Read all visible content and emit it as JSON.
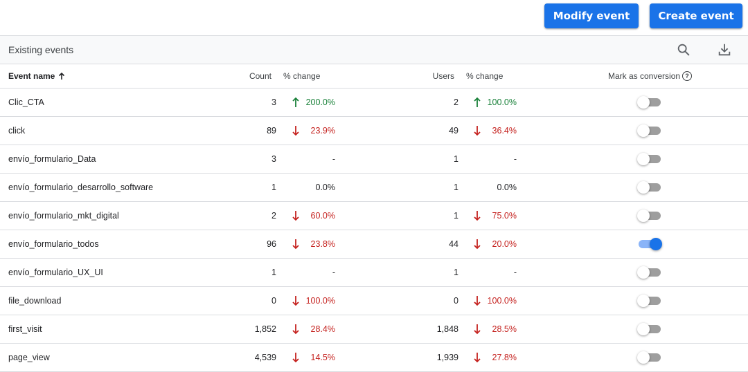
{
  "toolbar": {
    "modify_label": "Modify event",
    "create_label": "Create event"
  },
  "card": {
    "title": "Existing events"
  },
  "table": {
    "headers": {
      "event_name": "Event name",
      "count": "Count",
      "pct_change_count": "% change",
      "users": "Users",
      "pct_change_users": "% change",
      "conversion": "Mark as conversion",
      "help": "?"
    },
    "rows": [
      {
        "name": "Clic_CTA",
        "count": "3",
        "count_change": "200.0%",
        "count_dir": "up",
        "users": "2",
        "users_change": "100.0%",
        "users_dir": "up",
        "conversion": false
      },
      {
        "name": "click",
        "count": "89",
        "count_change": "23.9%",
        "count_dir": "down",
        "users": "49",
        "users_change": "36.4%",
        "users_dir": "down",
        "conversion": false
      },
      {
        "name": "envío_formulario_Data",
        "count": "3",
        "count_change": "-",
        "count_dir": "none",
        "users": "1",
        "users_change": "-",
        "users_dir": "none",
        "conversion": false
      },
      {
        "name": "envío_formulario_desarrollo_software",
        "count": "1",
        "count_change": "0.0%",
        "count_dir": "none",
        "users": "1",
        "users_change": "0.0%",
        "users_dir": "none",
        "conversion": false
      },
      {
        "name": "envío_formulario_mkt_digital",
        "count": "2",
        "count_change": "60.0%",
        "count_dir": "down",
        "users": "1",
        "users_change": "75.0%",
        "users_dir": "down",
        "conversion": false
      },
      {
        "name": "envío_formulario_todos",
        "count": "96",
        "count_change": "23.8%",
        "count_dir": "down",
        "users": "44",
        "users_change": "20.0%",
        "users_dir": "down",
        "conversion": true
      },
      {
        "name": "envío_formulario_UX_UI",
        "count": "1",
        "count_change": "-",
        "count_dir": "none",
        "users": "1",
        "users_change": "-",
        "users_dir": "none",
        "conversion": false
      },
      {
        "name": "file_download",
        "count": "0",
        "count_change": "100.0%",
        "count_dir": "down",
        "users": "0",
        "users_change": "100.0%",
        "users_dir": "down",
        "conversion": false
      },
      {
        "name": "first_visit",
        "count": "1,852",
        "count_change": "28.4%",
        "count_dir": "down",
        "users": "1,848",
        "users_change": "28.5%",
        "users_dir": "down",
        "conversion": false
      },
      {
        "name": "page_view",
        "count": "4,539",
        "count_change": "14.5%",
        "count_dir": "down",
        "users": "1,939",
        "users_change": "27.8%",
        "users_dir": "down",
        "conversion": false
      }
    ]
  },
  "icons": {
    "search": "search-icon",
    "download": "download-icon",
    "sort": "arrow-up-icon"
  },
  "colors": {
    "primary": "#1a73e8",
    "up": "#188038",
    "down": "#c5221f",
    "toggle_on_track": "#8ab4f8",
    "toggle_off_track": "#9e9e9e"
  }
}
